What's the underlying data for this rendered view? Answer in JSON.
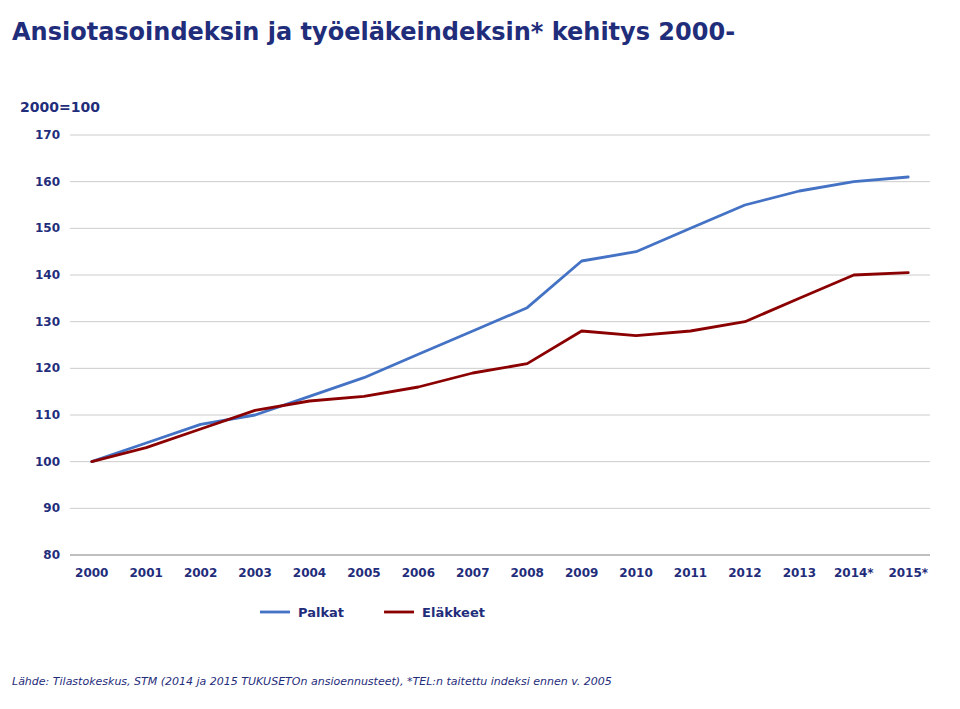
{
  "chart_data": {
    "type": "line",
    "title": "Ansiotasoindeksin ja työeläkeindeksin* kehitys 2000-",
    "subtitle": "2000=100",
    "annotations": [
      "Lähde: Tilastokeskus, STM (2014 ja 2015 TUKUSETOn ansioennusteet), *TEL:n taitettu indeksi ennen v. 2005"
    ],
    "categories": [
      "2000",
      "2001",
      "2002",
      "2003",
      "2004",
      "2005",
      "2006",
      "2007",
      "2008",
      "2009",
      "2010",
      "2011",
      "2012",
      "2013",
      "2014*",
      "2015*"
    ],
    "series": [
      {
        "name": "Palkat",
        "color": "#4472C4",
        "values": [
          100,
          104,
          108,
          110,
          114,
          118,
          123,
          128,
          133,
          143,
          145,
          150,
          155,
          158,
          160,
          161
        ]
      },
      {
        "name": "Eläkkeet",
        "color": "#8B0000",
        "values": [
          100,
          103,
          107,
          111,
          113,
          114,
          116,
          119,
          121,
          128,
          127,
          128,
          130,
          135,
          140,
          140.5
        ]
      }
    ],
    "ylim": [
      80,
      170
    ],
    "yticks": [
      80,
      90,
      100,
      110,
      120,
      130,
      140,
      150,
      160,
      170
    ],
    "grid": true,
    "legend": "bottom"
  }
}
